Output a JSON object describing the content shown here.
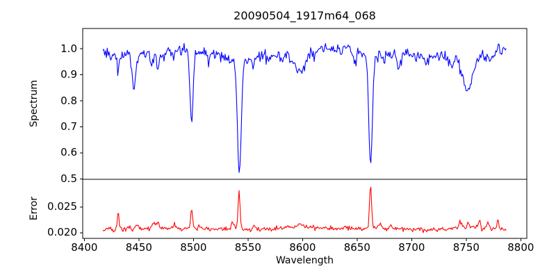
{
  "chart_data": {
    "type": "line",
    "title": "20090504_1917m64_068",
    "xlabel": "Wavelength",
    "background": "#ffffff",
    "frame_color": "#000000",
    "grid": false,
    "legend": false,
    "x_range": [
      8398.5,
      8805.5
    ],
    "x_ticks": {
      "values": [
        8400,
        8450,
        8500,
        8550,
        8600,
        8650,
        8700,
        8750,
        8800
      ],
      "labels": [
        "8400",
        "8450",
        "8500",
        "8550",
        "8600",
        "8650",
        "8700",
        "8750",
        "8800"
      ]
    },
    "panels": [
      {
        "name": "spectrum",
        "ylabel": "Spectrum",
        "color": "#0000ff",
        "ylim": [
          0.498,
          1.078
        ],
        "y_ticks": {
          "values": [
            0.5,
            0.6,
            0.7,
            0.8,
            0.9,
            1.0
          ],
          "labels": [
            "0.5",
            "0.6",
            "0.7",
            "0.8",
            "0.9",
            "1.0"
          ]
        },
        "series": {
          "x_start": 8417,
          "x_end": 8787,
          "x_step": 0.8,
          "noise_sigma": 0.012,
          "noise_seed": 3,
          "noise_proportional": true,
          "keypoints": [
            [
              8417,
              0.985
            ],
            [
              8440,
              0.98
            ],
            [
              8470,
              0.985
            ],
            [
              8490,
              0.995
            ],
            [
              8510,
              0.985
            ],
            [
              8530,
              0.975
            ],
            [
              8555,
              0.97
            ],
            [
              8580,
              0.975
            ],
            [
              8600,
              0.985
            ],
            [
              8622,
              1.0
            ],
            [
              8640,
              1.0
            ],
            [
              8660,
              0.99
            ],
            [
              8680,
              0.98
            ],
            [
              8705,
              0.975
            ],
            [
              8730,
              0.97
            ],
            [
              8755,
              0.965
            ],
            [
              8775,
              0.985
            ],
            [
              8787,
              1.005
            ]
          ],
          "gaussians": [
            [
              8425,
              -0.025,
              1.0
            ],
            [
              8431,
              -0.055,
              1.0
            ],
            [
              8445.5,
              -0.13,
              1.6
            ],
            [
              8462,
              -0.05,
              1.2
            ],
            [
              8467.5,
              -0.055,
              1.2
            ],
            [
              8480,
              -0.02,
              1.0
            ],
            [
              8498.3,
              -0.28,
              1.4
            ],
            [
              8514,
              -0.035,
              1.0
            ],
            [
              8542,
              -0.42,
              1.7
            ],
            [
              8542,
              -0.03,
              6
            ],
            [
              8555,
              -0.045,
              0.9
            ],
            [
              8569,
              -0.025,
              1.0
            ],
            [
              8582,
              -0.03,
              1.0
            ],
            [
              8598,
              -0.075,
              4.5
            ],
            [
              8611,
              -0.02,
              1.0
            ],
            [
              8648,
              -0.05,
              1.6
            ],
            [
              8662.3,
              -0.4,
              1.6
            ],
            [
              8662.3,
              -0.03,
              6
            ],
            [
              8674,
              -0.03,
              1.2
            ],
            [
              8688,
              -0.045,
              1.5
            ],
            [
              8713,
              -0.03,
              1.5
            ],
            [
              8736,
              -0.04,
              1.8
            ],
            [
              8751,
              -0.125,
              4.5
            ],
            [
              8772,
              -0.03,
              1.2
            ]
          ]
        }
      },
      {
        "name": "error",
        "ylabel": "Error",
        "color": "#ff0000",
        "ylim": [
          0.0189,
          0.0304
        ],
        "y_ticks": {
          "values": [
            0.02,
            0.025
          ],
          "labels": [
            "0.020",
            "0.025"
          ]
        },
        "series": {
          "x_start": 8417,
          "x_end": 8787,
          "x_step": 0.8,
          "noise_sigma": 0.00022,
          "noise_seed": 8,
          "noise_proportional": false,
          "keypoints": [
            [
              8417,
              0.0206
            ],
            [
              8445,
              0.0208
            ],
            [
              8470,
              0.0209
            ],
            [
              8500,
              0.0208
            ],
            [
              8530,
              0.0207
            ],
            [
              8560,
              0.0206
            ],
            [
              8595,
              0.0211
            ],
            [
              8615,
              0.021
            ],
            [
              8640,
              0.0207
            ],
            [
              8665,
              0.0209
            ],
            [
              8690,
              0.0207
            ],
            [
              8715,
              0.0205
            ],
            [
              8740,
              0.0209
            ],
            [
              8762,
              0.021
            ],
            [
              8778,
              0.0209
            ],
            [
              8787,
              0.0205
            ]
          ],
          "gaussians": [
            [
              8431,
              0.0036,
              0.7
            ],
            [
              8448,
              0.0007,
              1.2
            ],
            [
              8464,
              0.0012,
              1.5
            ],
            [
              8468,
              0.0011,
              1.0
            ],
            [
              8483,
              0.0005,
              1.0
            ],
            [
              8498.3,
              0.0038,
              0.9
            ],
            [
              8505,
              0.0008,
              0.9
            ],
            [
              8536,
              0.0016,
              1.2
            ],
            [
              8541.8,
              0.0073,
              0.9
            ],
            [
              8556,
              0.0008,
              1.0
            ],
            [
              8598,
              0.0006,
              3.0
            ],
            [
              8640,
              0.0004,
              2.0
            ],
            [
              8662.3,
              0.0087,
              0.9
            ],
            [
              8671,
              0.0008,
              1.5
            ],
            [
              8681,
              0.0008,
              1.0
            ],
            [
              8745,
              0.0013,
              1.5
            ],
            [
              8752,
              0.0012,
              1.0
            ],
            [
              8762,
              0.0013,
              0.8
            ],
            [
              8770,
              0.0012,
              0.8
            ],
            [
              8779,
              0.0018,
              0.7
            ]
          ]
        }
      }
    ]
  }
}
